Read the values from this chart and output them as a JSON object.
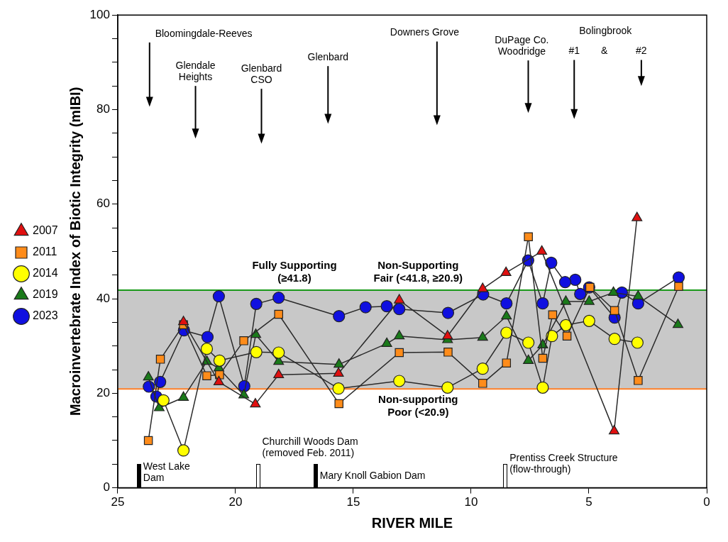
{
  "chart_data": {
    "type": "line",
    "xlabel": "RIVER MILE",
    "ylabel": "Macroinvertebrate Index of Biotic Integrity (mIBI)",
    "xlim": [
      25,
      0
    ],
    "xticks": [
      0,
      5,
      10,
      15,
      20,
      25
    ],
    "ylim": [
      0,
      100
    ],
    "yticks": [
      0,
      {
        "value": 5,
        "label": null
      },
      {
        "value": 10,
        "label": null
      },
      {
        "value": 15,
        "label": null
      },
      20,
      {
        "value": 25,
        "label": null
      },
      {
        "value": 30,
        "label": null
      },
      {
        "value": 35,
        "label": null
      },
      40,
      {
        "value": 45,
        "label": null
      },
      {
        "value": 50,
        "label": null
      },
      {
        "value": 55,
        "label": null
      },
      60,
      {
        "value": 65,
        "label": null
      },
      {
        "value": 70,
        "label": null
      },
      {
        "value": 75,
        "label": null
      },
      80,
      {
        "value": 85,
        "label": null
      },
      {
        "value": 90,
        "label": null
      },
      {
        "value": 95,
        "label": null
      },
      100
    ],
    "grid": false,
    "legend": "left",
    "series": [
      {
        "name": "2007",
        "color": "#e01010",
        "marker": "triangle",
        "x": [
          2.96,
          3.93,
          7.0,
          8.52,
          9.51,
          11.0,
          13.05,
          15.63,
          18.17,
          19.16,
          20.71,
          22.21
        ],
        "values": [
          57.1,
          12.0,
          50.0,
          45.5,
          42.1,
          32.1,
          39.7,
          24.2,
          23.9,
          17.7,
          22.4,
          35.1
        ]
      },
      {
        "name": "2011",
        "color": "#ff8c1a",
        "marker": "square",
        "x": [
          1.19,
          2.91,
          3.91,
          4.96,
          5.93,
          6.54,
          6.96,
          7.57,
          8.5,
          9.51,
          10.98,
          13.05,
          15.61,
          18.17,
          19.65,
          20.68,
          21.22,
          22.21,
          23.19,
          23.7
        ],
        "values": [
          42.6,
          22.7,
          37.5,
          42.4,
          32.1,
          36.6,
          27.4,
          53.1,
          26.4,
          22.1,
          28.7,
          28.6,
          17.8,
          36.7,
          31.1,
          23.9,
          23.7,
          34.5,
          27.2,
          10.0
        ]
      },
      {
        "name": "2014",
        "color": "#ffff00",
        "marker": "circle",
        "x": [
          2.94,
          3.91,
          4.99,
          5.98,
          6.57,
          6.96,
          7.57,
          8.5,
          9.51,
          11.0,
          13.05,
          15.63,
          18.17,
          19.12,
          20.68,
          21.22,
          22.21,
          23.06
        ],
        "values": [
          30.7,
          31.5,
          35.3,
          34.4,
          32.1,
          21.2,
          30.7,
          32.8,
          25.2,
          21.2,
          22.6,
          21.0,
          28.6,
          28.7,
          26.9,
          29.4,
          7.9,
          18.5
        ]
      },
      {
        "name": "2019",
        "color": "#1a7a1a",
        "marker": "triangle",
        "x": [
          1.22,
          2.91,
          3.96,
          4.99,
          5.98,
          6.96,
          7.57,
          8.5,
          9.51,
          11.0,
          13.05,
          13.58,
          15.61,
          18.17,
          19.14,
          19.65,
          20.71,
          21.22,
          22.21,
          23.24,
          23.7
        ],
        "values": [
          34.5,
          40.5,
          41.3,
          39.4,
          39.4,
          30.2,
          26.9,
          36.3,
          31.8,
          31.3,
          32.1,
          30.5,
          26.1,
          26.7,
          32.4,
          19.6,
          25.3,
          26.7,
          19.1,
          16.9,
          23.4
        ]
      },
      {
        "name": "2023",
        "color": "#1010e0",
        "marker": "circle",
        "x": [
          1.19,
          2.91,
          3.6,
          3.91,
          4.99,
          5.37,
          5.58,
          6.01,
          6.6,
          6.96,
          7.58,
          8.5,
          9.49,
          10.98,
          13.05,
          13.58,
          14.48,
          15.61,
          18.17,
          19.12,
          19.63,
          20.71,
          21.19,
          22.19,
          23.2,
          23.36,
          23.68
        ],
        "values": [
          44.5,
          39.0,
          41.3,
          36.0,
          42.4,
          41.0,
          44.0,
          43.5,
          47.6,
          39.0,
          48.1,
          39.0,
          40.9,
          37.0,
          37.8,
          38.4,
          38.2,
          36.3,
          40.2,
          38.9,
          21.5,
          40.5,
          31.9,
          33.3,
          22.4,
          19.3,
          21.4
        ]
      }
    ],
    "ref_lines": [
      {
        "axis": "y",
        "value": 20.9,
        "color": "#ff7f27",
        "label": "Non-supporting\nPoor (<20.9)"
      },
      {
        "axis": "y",
        "value": 41.8,
        "color": "#1a9a1a",
        "label": "Fully Supporting\n(≥41.8)"
      }
    ],
    "bands": [
      {
        "axis": "y",
        "from": 20.9,
        "to": 41.8,
        "color": "#c8c8c8",
        "label": "Non-Supporting\nFair (<41.8, ≥20.9)"
      }
    ],
    "annotations": [
      "West Lake\nDam",
      "Churchill Woods Dam\n(removed Feb. 2011)",
      "Mary Knoll Gabion Dam",
      "Prentiss Creek Structure\n(flow-through)",
      "Bloomingdale-Reeves",
      "Glendale\nHeights",
      "Glenbard\nCSO",
      "Glenbard",
      "Downers Grove",
      "DuPage Co.\nWoodridge",
      "#1",
      "#2",
      "Bolingbrook",
      "&"
    ]
  }
}
